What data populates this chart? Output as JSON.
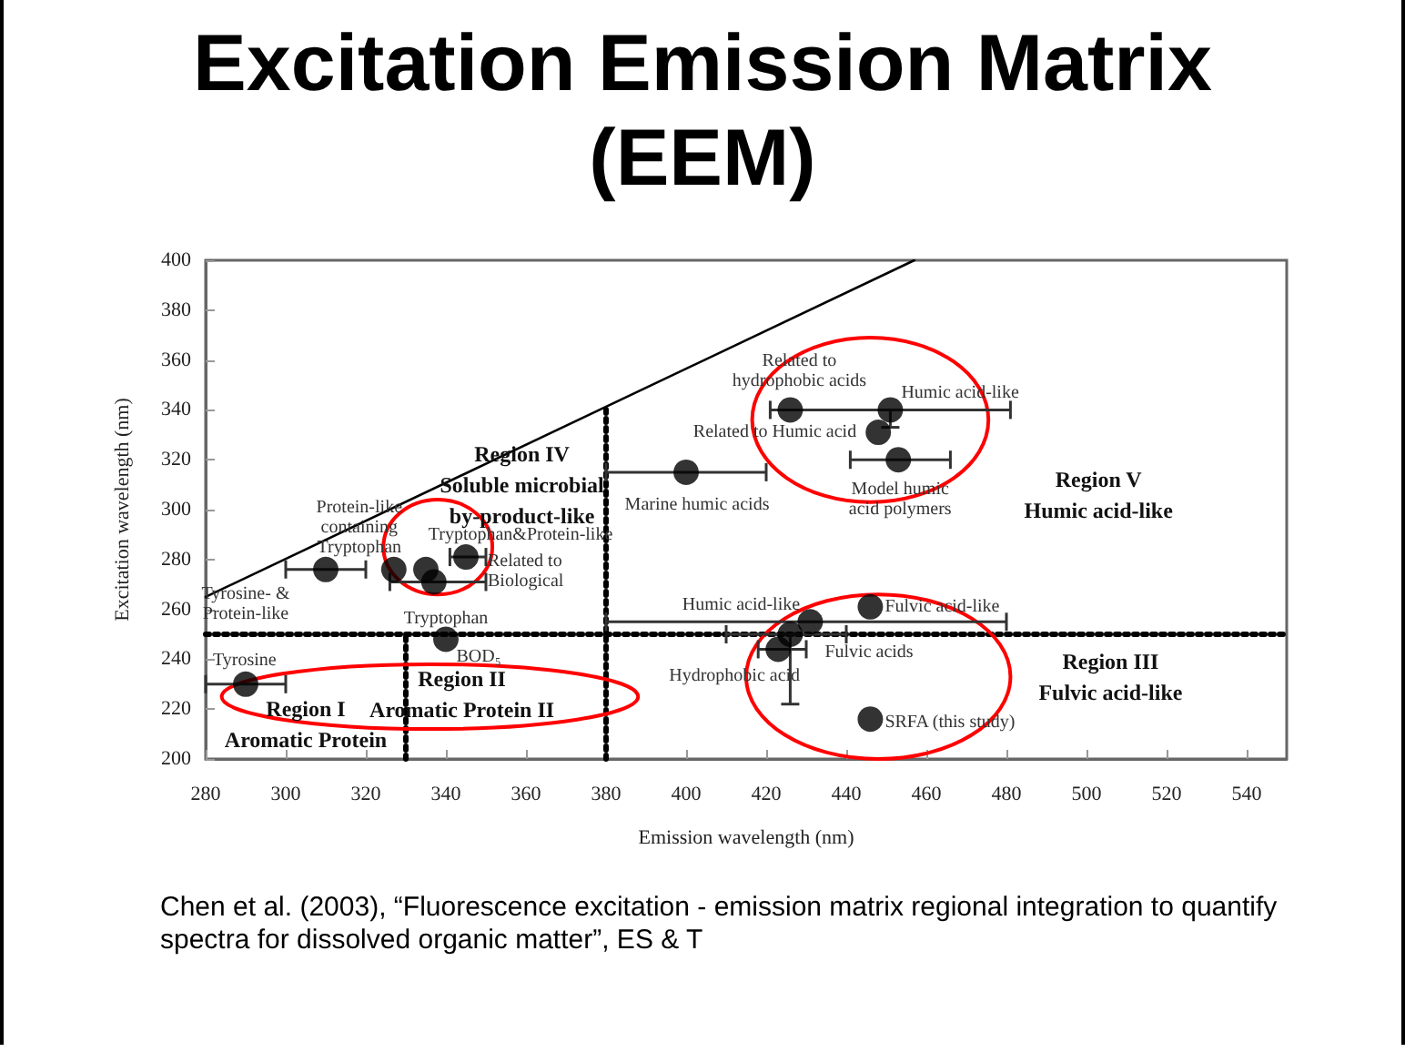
{
  "chart_data": {
    "type": "scatter",
    "title": "Excitation Emission Matrix\n(EEM)",
    "xlabel": "Emission wavelength (nm)",
    "ylabel": "Excitation wavelength (nm)",
    "xlim": [
      280,
      550
    ],
    "xticks": [
      280,
      300,
      320,
      340,
      360,
      380,
      400,
      420,
      440,
      460,
      480,
      500,
      520,
      540
    ],
    "ylim": [
      200,
      400
    ],
    "yticks": [
      200,
      220,
      240,
      260,
      280,
      300,
      320,
      340,
      360,
      380,
      400
    ],
    "grid": false,
    "marker": "circle",
    "series": [
      {
        "type": "line",
        "marker": "none",
        "color": "#000000",
        "line_style": "solid",
        "x": [
          280,
          457
        ],
        "values": [
          265,
          400
        ]
      },
      {
        "type": "line",
        "marker": "none",
        "color": "#000000",
        "line_style": "dotted",
        "x": [
          280,
          550
        ],
        "values": [
          250,
          250
        ]
      },
      {
        "type": "line",
        "marker": "none",
        "color": "#000000",
        "line_style": "dotted",
        "x": [
          330,
          330
        ],
        "values": [
          200,
          250
        ]
      },
      {
        "type": "line",
        "marker": "none",
        "color": "#000000",
        "line_style": "dotted",
        "x": [
          380,
          380
        ],
        "values": [
          200,
          341
        ]
      },
      {
        "color": "#000000",
        "x": [
          290,
          310,
          327,
          335,
          337,
          345,
          340,
          400,
          426,
          451,
          448,
          453,
          431,
          446,
          426,
          423,
          446
        ],
        "values": [
          230,
          276,
          276,
          276,
          271,
          281,
          248,
          315,
          340,
          340,
          331,
          320,
          255,
          261,
          250,
          244,
          216
        ],
        "xerrors": [
          [
            280,
            300
          ],
          [
            300,
            320
          ],
          null,
          null,
          [
            326,
            350
          ],
          [
            341,
            350
          ],
          null,
          [
            380,
            420
          ],
          null,
          [
            421,
            481
          ],
          null,
          [
            441,
            466
          ],
          [
            380,
            480
          ],
          null,
          [
            410,
            440
          ],
          [
            418,
            430
          ],
          null
        ],
        "errors": [
          null,
          null,
          null,
          null,
          null,
          null,
          null,
          null,
          null,
          [
            333,
            340
          ],
          null,
          null,
          null,
          null,
          [
            222,
            250
          ],
          null,
          null
        ]
      }
    ],
    "annotations": [
      {
        "text": "Tyrosine",
        "x": 290,
        "y": 230
      },
      {
        "text": "Tyrosine- &\nProtein-like",
        "x": 310,
        "y": 276
      },
      {
        "text": "Protein-like\ncontaining\nTryptophan",
        "x": 327,
        "y": 276
      },
      {
        "text": "Tryptophan&Protein-like",
        "x": 345,
        "y": 281
      },
      {
        "text": "Related to\nBiological",
        "x": 345,
        "y": 281
      },
      {
        "text": "Tryptophan",
        "x": 340,
        "y": 248
      },
      {
        "text": "BOD₅",
        "x": 340,
        "y": 248
      },
      {
        "text": "Marine humic acids",
        "x": 400,
        "y": 315
      },
      {
        "text": "Related to\nhydrophobic acids",
        "x": 426,
        "y": 340
      },
      {
        "text": "Humic acid-like",
        "x": 451,
        "y": 340
      },
      {
        "text": "Related to Humic acid",
        "x": 448,
        "y": 331
      },
      {
        "text": "Model humic\nacid polymers",
        "x": 453,
        "y": 320
      },
      {
        "text": "Humic acid-like",
        "x": 431,
        "y": 255
      },
      {
        "text": "Fulvic acid-like",
        "x": 446,
        "y": 261
      },
      {
        "text": "Fulvic acids",
        "x": 426,
        "y": 250
      },
      {
        "text": "Hydrophobic acid",
        "x": 423,
        "y": 244
      },
      {
        "text": "SRFA (this study)",
        "x": 446,
        "y": 216
      },
      "Region I\nAromatic Protein",
      "Region II\nAromatic Protein II",
      "Region IV\nSoluble microbial\nby-product-like",
      "Region V\nHumic acid-like",
      "Region III\nFulvic acid-like",
      "Chen et al. (2003), “Fluorescence excitation - emission matrix regional integration to quantify spectra for dissolved organic matter”, ES & T"
    ]
  }
}
